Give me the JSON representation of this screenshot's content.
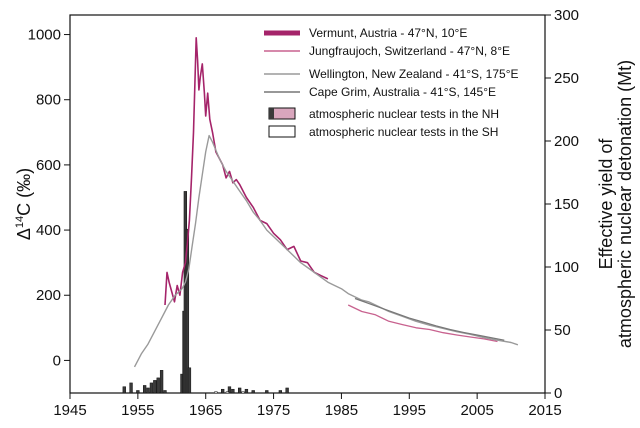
{
  "chart_data": {
    "type": "line",
    "title": "",
    "xlabel": "",
    "ylabel": "Δ14C (‰)",
    "ylabel_parts": {
      "base": "Δ",
      "sup": "14",
      "rest": "C (‰)"
    },
    "y2label": [
      "Effective yield of",
      "atmospheric nuclear detonation (Mt)"
    ],
    "xlim": [
      1945,
      2015
    ],
    "ylim": [
      -100,
      1060
    ],
    "y2lim": [
      0,
      300
    ],
    "x_ticks": [
      1945,
      1955,
      1965,
      1975,
      1985,
      1995,
      2005,
      2015
    ],
    "y_ticks": [
      0,
      200,
      400,
      600,
      800,
      1000
    ],
    "y2_ticks": [
      0,
      50,
      100,
      150,
      200,
      250,
      300
    ],
    "grid": false,
    "legend_position": "top-right",
    "colors": {
      "vermunt": "#a5246a",
      "jungfraujoch": "#c8628f",
      "wellington": "#9a9a9a",
      "cape_grim": "#777777",
      "nh_tests": "#3a3a3a",
      "sh_tests": "#ffffff"
    },
    "series": [
      {
        "name": "Vermunt, Austria - 47°N, 10°E",
        "key": "vermunt",
        "x": [
          1959.0,
          1959.3,
          1959.6,
          1960.0,
          1960.4,
          1960.8,
          1961.2,
          1961.6,
          1962.0,
          1962.3,
          1962.6,
          1962.9,
          1963.2,
          1963.4,
          1963.6,
          1963.8,
          1964.0,
          1964.2,
          1964.5,
          1964.8,
          1965.0,
          1965.3,
          1965.6,
          1966.0,
          1966.5,
          1967.0,
          1967.5,
          1968.0,
          1968.5,
          1969.0,
          1969.5,
          1970.0,
          1971.0,
          1972.0,
          1973.0,
          1974.0,
          1975.0,
          1976.0,
          1977.0,
          1978.0,
          1979.0,
          1980.0,
          1981.0,
          1982.0,
          1983.0
        ],
        "y": [
          170,
          270,
          240,
          210,
          180,
          230,
          200,
          270,
          300,
          360,
          430,
          560,
          700,
          850,
          990,
          920,
          830,
          870,
          910,
          820,
          750,
          820,
          740,
          700,
          640,
          620,
          600,
          560,
          580,
          545,
          555,
          540,
          500,
          470,
          430,
          420,
          390,
          370,
          340,
          350,
          305,
          300,
          270,
          260,
          250
        ]
      },
      {
        "name": "Jungfraujoch, Switzerland - 47°N, 8°E",
        "key": "jungfraujoch",
        "x": [
          1986.0,
          1988.0,
          1990.0,
          1992.0,
          1994.0,
          1996.0,
          1998.0,
          2000.0,
          2002.0,
          2004.0,
          2006.0,
          2008.0
        ],
        "y": [
          170,
          150,
          140,
          120,
          110,
          100,
          95,
          85,
          78,
          72,
          66,
          58
        ]
      },
      {
        "name": "Wellington, New Zealand - 41°S, 175°E",
        "key": "wellington",
        "x": [
          1954.5,
          1955.5,
          1956.5,
          1957.5,
          1958.5,
          1959.5,
          1960.5,
          1961.5,
          1962.0,
          1962.5,
          1963.0,
          1963.5,
          1964.0,
          1964.5,
          1965.0,
          1965.5,
          1966.0,
          1967.0,
          1968.0,
          1969.0,
          1970.0,
          1971.0,
          1972.0,
          1973.0,
          1974.0,
          1975.0,
          1976.0,
          1977.0,
          1978.0,
          1979.0,
          1980.0,
          1981.0,
          1982.0,
          1983.0,
          1984.0,
          1985.0,
          1986.0,
          1987.0,
          1988.0,
          1989.0,
          1990.0,
          1992.0,
          1994.0,
          1996.0,
          1998.0,
          2000.0,
          2002.0,
          2004.0,
          2006.0,
          2008.0,
          2010.0,
          2011.0
        ],
        "y": [
          -20,
          20,
          50,
          90,
          130,
          170,
          200,
          220,
          240,
          280,
          350,
          420,
          500,
          570,
          640,
          690,
          670,
          620,
          580,
          550,
          520,
          490,
          455,
          430,
          400,
          380,
          360,
          340,
          320,
          300,
          285,
          270,
          255,
          240,
          230,
          220,
          205,
          195,
          185,
          180,
          170,
          150,
          135,
          120,
          108,
          98,
          88,
          80,
          70,
          62,
          55,
          48
        ]
      },
      {
        "name": "Cape Grim, Australia - 41°S, 145°E",
        "key": "cape_grim",
        "x": [
          1987.0,
          1989.0,
          1991.0,
          1993.0,
          1995.0,
          1997.0,
          1999.0,
          2001.0,
          2003.0,
          2005.0,
          2007.0,
          2009.0
        ],
        "y": [
          190,
          175,
          160,
          145,
          130,
          118,
          106,
          95,
          86,
          78,
          70,
          62
        ]
      }
    ],
    "bars": [
      {
        "name": "atmospheric nuclear tests in the NH",
        "key": "nh_tests",
        "axis": "y2",
        "x": [
          1953.0,
          1954.0,
          1955.0,
          1956.0,
          1956.5,
          1957.0,
          1957.5,
          1958.0,
          1958.5,
          1959.0,
          1961.5,
          1961.8,
          1962.0,
          1962.3,
          1962.6,
          1967.5,
          1968.5,
          1969.0,
          1970.0,
          1971.0,
          1972.0,
          1974.0,
          1976.0,
          1977.0
        ],
        "values": [
          5,
          8,
          2,
          6,
          4,
          8,
          10,
          12,
          18,
          2,
          15,
          65,
          160,
          130,
          20,
          3,
          5,
          3,
          4,
          3,
          2,
          2,
          2,
          4
        ]
      },
      {
        "name": "atmospheric nuclear tests in the SH",
        "key": "sh_tests",
        "axis": "y2",
        "x": [
          1966.5,
          1968.2,
          1970.5
        ],
        "values": [
          1,
          1,
          1
        ]
      }
    ]
  }
}
